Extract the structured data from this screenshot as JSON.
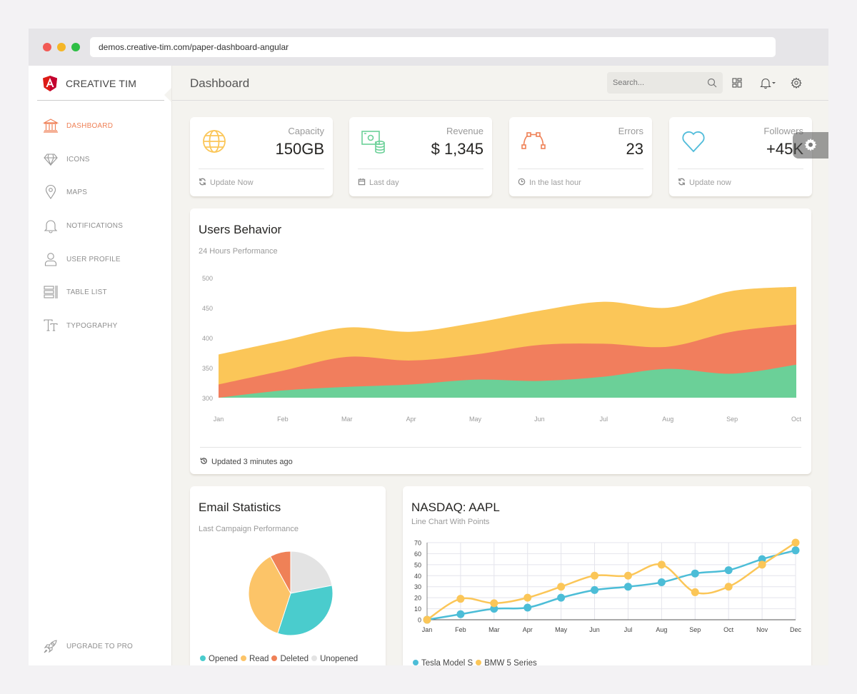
{
  "browser": {
    "url": "demos.creative-tim.com/paper-dashboard-angular"
  },
  "brand": {
    "name": "CREATIVE TIM"
  },
  "sidebar": {
    "items": [
      {
        "label": "DASHBOARD",
        "icon": "bank-icon",
        "active": true
      },
      {
        "label": "ICONS",
        "icon": "diamond-icon",
        "active": false
      },
      {
        "label": "MAPS",
        "icon": "map-pin-icon",
        "active": false
      },
      {
        "label": "NOTIFICATIONS",
        "icon": "bell-icon",
        "active": false
      },
      {
        "label": "USER PROFILE",
        "icon": "user-icon",
        "active": false
      },
      {
        "label": "TABLE LIST",
        "icon": "list-icon",
        "active": false
      },
      {
        "label": "TYPOGRAPHY",
        "icon": "text-icon",
        "active": false
      }
    ],
    "upgrade": {
      "label": "UPGRADE TO PRO",
      "icon": "rocket-icon"
    }
  },
  "topbar": {
    "title": "Dashboard",
    "search_placeholder": "Search..."
  },
  "stats": [
    {
      "label": "Capacity",
      "value": "150GB",
      "footer": "Update Now",
      "icon": "globe-icon",
      "footer_icon": "refresh-icon",
      "color": "#fbc658"
    },
    {
      "label": "Revenue",
      "value": "$ 1,345",
      "footer": "Last day",
      "icon": "money-icon",
      "footer_icon": "calendar-icon",
      "color": "#6bd098"
    },
    {
      "label": "Errors",
      "value": "23",
      "footer": "In the last hour",
      "icon": "vector-icon",
      "footer_icon": "clock-icon",
      "color": "#ef8157"
    },
    {
      "label": "Followers",
      "value": "+45K",
      "footer": "Update now",
      "icon": "heart-icon",
      "footer_icon": "refresh-icon",
      "color": "#51bcda"
    }
  ],
  "users_behavior": {
    "title": "Users Behavior",
    "subtitle": "24 Hours Performance",
    "footer": "Updated 3 minutes ago"
  },
  "email_stats": {
    "title": "Email Statistics",
    "subtitle": "Last Campaign Performance"
  },
  "nasdaq": {
    "title": "NASDAQ: AAPL",
    "subtitle": "Line Chart With Points"
  },
  "colors": {
    "accent": "#ef8157",
    "yellow": "#fbc658",
    "orange": "#f17e5d",
    "green": "#6bd098",
    "teal": "#4acccd",
    "blue": "#4cbdd7",
    "gray": "#e3e3e3"
  },
  "chart_data": [
    {
      "type": "area",
      "categories": [
        "Jan",
        "Feb",
        "Mar",
        "Apr",
        "May",
        "Jun",
        "Jul",
        "Aug",
        "Sep",
        "Oct"
      ],
      "ylim": [
        300,
        500
      ],
      "yticks": [
        300,
        350,
        400,
        450,
        500
      ],
      "stacked_top": true,
      "series": [
        {
          "color": "#fbc658",
          "values": [
            372,
            395,
            417,
            410,
            425,
            445,
            460,
            450,
            478,
            485
          ]
        },
        {
          "color": "#f17e5d",
          "values": [
            322,
            345,
            368,
            362,
            372,
            388,
            390,
            385,
            410,
            422
          ]
        },
        {
          "color": "#6bd098",
          "values": [
            300,
            312,
            318,
            322,
            330,
            328,
            335,
            348,
            340,
            355
          ]
        }
      ]
    },
    {
      "type": "pie",
      "labels": [
        "Opened",
        "Read",
        "Deleted",
        "Unopened"
      ],
      "colors": [
        "#4acccd",
        "#fcc468",
        "#ef8157",
        "#e3e3e3"
      ],
      "values": [
        342,
        480,
        530,
        120
      ],
      "ordered_values": [
        {
          "label": "Unopened",
          "value": 22
        },
        {
          "label": "Opened",
          "value": 33
        },
        {
          "label": "Read",
          "value": 37
        },
        {
          "label": "Deleted",
          "value": 8
        }
      ]
    },
    {
      "type": "line",
      "categories": [
        "Jan",
        "Feb",
        "Mar",
        "Apr",
        "May",
        "Jun",
        "Jul",
        "Aug",
        "Sep",
        "Oct",
        "Nov",
        "Dec"
      ],
      "ylim": [
        0,
        70
      ],
      "yticks": [
        0,
        10,
        20,
        30,
        40,
        50,
        60,
        70
      ],
      "series": [
        {
          "name": "Tesla Model S",
          "color": "#4cbdd7",
          "values": [
            0,
            5,
            10,
            11,
            20,
            27,
            30,
            34,
            42,
            45,
            55,
            63
          ]
        },
        {
          "name": "BMW 5 Series",
          "color": "#fbc658",
          "values": [
            0,
            19,
            15,
            20,
            30,
            40,
            40,
            50,
            25,
            30,
            50,
            70
          ]
        }
      ]
    }
  ]
}
